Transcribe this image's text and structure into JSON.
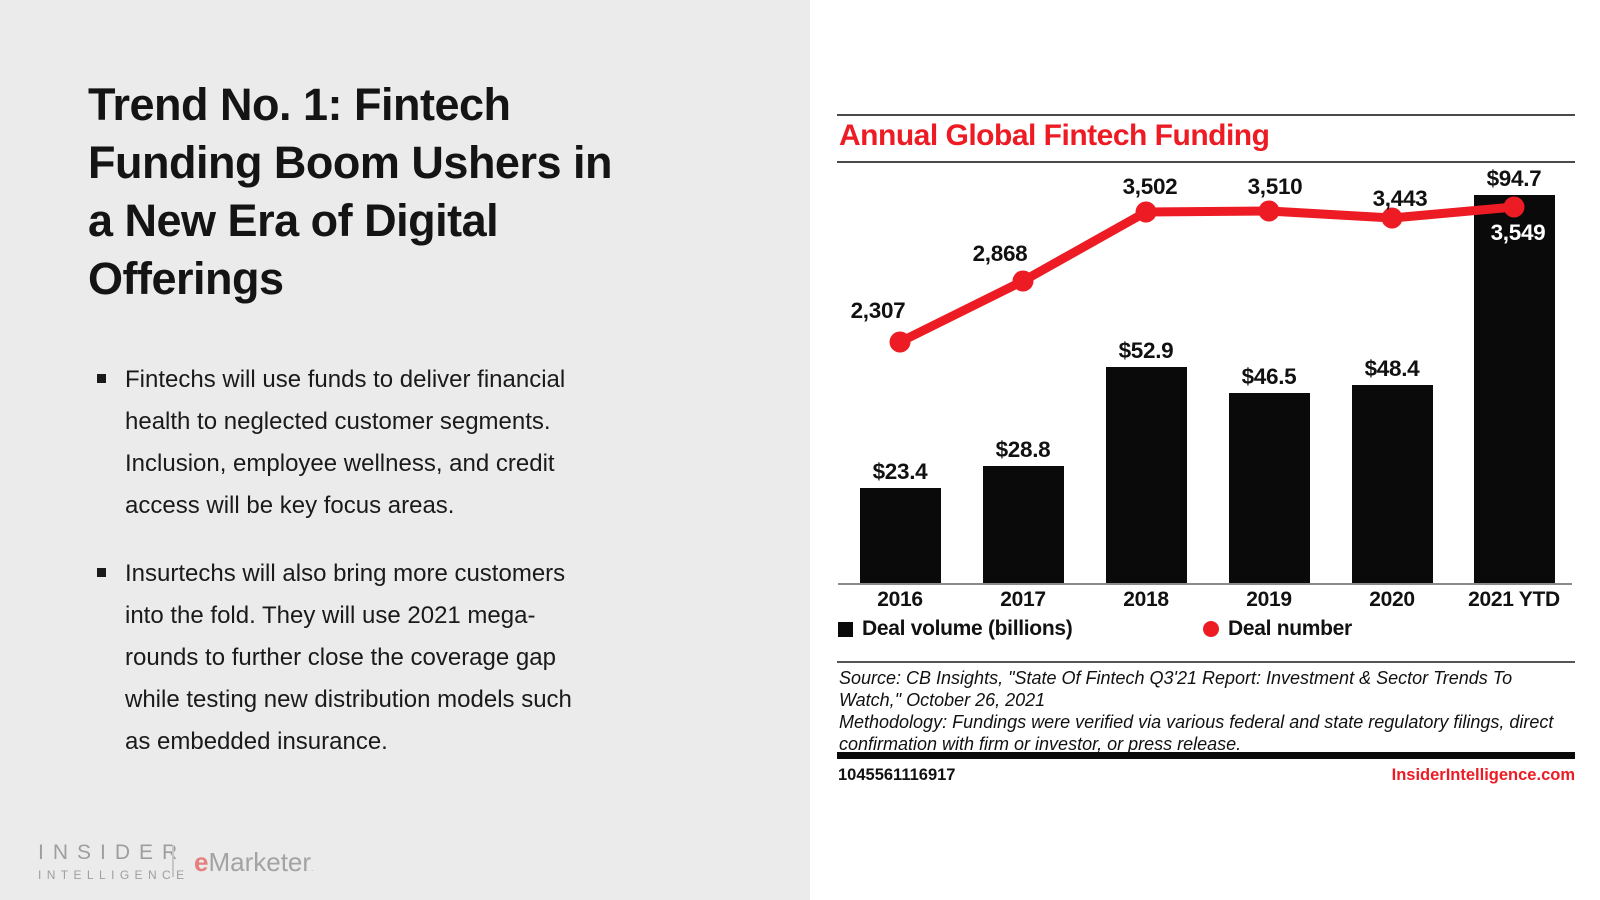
{
  "slide": {
    "title_lines": [
      "Trend No. 1: Fintech",
      "Funding Boom Ushers in",
      "a New Era of Digital",
      "Offerings"
    ],
    "bullets": [
      {
        "lines": [
          "Fintechs will use funds to deliver financial",
          "health to neglected customer segments.",
          "Inclusion, employee wellness, and credit",
          "access will be key focus areas."
        ]
      },
      {
        "lines": [
          "Insurtechs will also bring more customers",
          "into the fold. They will use 2021 mega-",
          "rounds to further close the coverage gap",
          "while testing new distribution models such",
          "as embedded insurance."
        ]
      }
    ]
  },
  "branding": {
    "insider_line1": "INSIDER",
    "insider_line2": "INTELLIGENCE",
    "emarketer_e": "e",
    "emarketer_rest": "Marketer",
    "emarketer_mark": "."
  },
  "chart": {
    "title": "Annual Global Fintech Funding",
    "legend": [
      {
        "label": "Deal volume (billions)",
        "marker": "square",
        "color": "#0a0a0a"
      },
      {
        "label": "Deal number",
        "marker": "circle",
        "color": "#ed1c24"
      }
    ],
    "source_lines": [
      "Source: CB Insights, \"State Of Fintech Q3'21 Report: Investment & Sector Trends To",
      "Watch,\" October 26, 2021",
      "Methodology: Fundings were verified via various federal and state regulatory filings, direct",
      "confirmation with firm or investor, or press release."
    ],
    "footer": {
      "code": "1045561116917",
      "site": "InsiderIntelligence.com"
    }
  },
  "chart_data": {
    "type": "combo",
    "title": "Annual Global Fintech Funding",
    "categories": [
      "2016",
      "2017",
      "2018",
      "2019",
      "2020",
      "2021 YTD"
    ],
    "series": [
      {
        "name": "Deal volume (billions)",
        "type": "bar",
        "values": [
          23.4,
          28.8,
          52.9,
          46.5,
          48.4,
          94.7
        ],
        "labels": [
          "$23.4",
          "$28.8",
          "$52.9",
          "$46.5",
          "$48.4",
          "$94.7"
        ]
      },
      {
        "name": "Deal number",
        "type": "line",
        "values": [
          2307,
          2868,
          3502,
          3510,
          3443,
          3549
        ],
        "labels": [
          "2,307",
          "2,868",
          "3,502",
          "3,510",
          "3,443",
          "3,549"
        ]
      }
    ],
    "xlabel": "",
    "ylabel": "",
    "grid": false,
    "legend_position": "bottom"
  },
  "colors": {
    "left_panel_bg": "#ebebeb",
    "right_panel_bg": "#ffffff",
    "text": "#1a1a1a",
    "accent_red": "#ed1c24",
    "bar_black": "#0a0a0a",
    "logo_gray": "#9e9e9e",
    "emarketer_e_red": "#e4807f"
  }
}
